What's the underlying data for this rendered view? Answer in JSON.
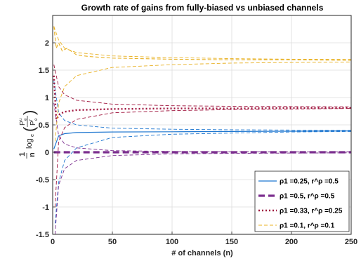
{
  "chart_data": {
    "type": "line",
    "title": "Growth rate of gains from fully-biased vs unbiased channels",
    "xlabel": "# of channels (n)",
    "ylabel": "(1/n) log_e(P_e^u / P_e^f)",
    "xlim": [
      0,
      250
    ],
    "ylim": [
      -1.5,
      2.5
    ],
    "xticks": [
      0,
      50,
      100,
      150,
      200,
      250
    ],
    "yticks": [
      -1.5,
      -1,
      -0.5,
      0,
      0.5,
      1,
      1.5,
      2
    ],
    "xtick_labels": [
      "0",
      "50",
      "100",
      "150",
      "200",
      "250"
    ],
    "ytick_labels": [
      "-1.5",
      "-1",
      "-0.5",
      "0",
      "0.5",
      "1",
      "1.5",
      "2"
    ],
    "grid": true,
    "legend_position": "bottom-right",
    "series": [
      {
        "name": "ρ1 =0.25, r^ρ =0.5",
        "color": "#1f77d0",
        "style": "solid",
        "exact": [
          [
            1,
            0.06
          ],
          [
            5,
            0.3
          ],
          [
            10,
            0.34
          ],
          [
            20,
            0.36
          ],
          [
            50,
            0.37
          ],
          [
            100,
            0.375
          ],
          [
            150,
            0.38
          ],
          [
            200,
            0.385
          ],
          [
            250,
            0.39
          ]
        ],
        "upper_bound": [
          [
            1,
            1.3
          ],
          [
            5,
            0.72
          ],
          [
            10,
            0.58
          ],
          [
            20,
            0.5
          ],
          [
            50,
            0.44
          ],
          [
            100,
            0.42
          ],
          [
            150,
            0.41
          ],
          [
            200,
            0.405
          ],
          [
            250,
            0.4
          ]
        ],
        "lower_bound": [
          [
            2,
            -1.3
          ],
          [
            5,
            -0.55
          ],
          [
            10,
            -0.15
          ],
          [
            20,
            0.08
          ],
          [
            50,
            0.27
          ],
          [
            100,
            0.33
          ],
          [
            150,
            0.35
          ],
          [
            200,
            0.37
          ],
          [
            250,
            0.38
          ]
        ]
      },
      {
        "name": "ρ1 =0.5, r^ρ =0.5",
        "color": "#7b2d8e",
        "style": "dashed-thick",
        "exact": [
          [
            1,
            0.0
          ],
          [
            50,
            0.0
          ],
          [
            100,
            0.0
          ],
          [
            150,
            0.0
          ],
          [
            200,
            0.0
          ],
          [
            250,
            0.0
          ]
        ],
        "upper_bound": [
          [
            1,
            0.9
          ],
          [
            5,
            0.3
          ],
          [
            10,
            0.15
          ],
          [
            20,
            0.08
          ],
          [
            50,
            0.03
          ],
          [
            100,
            0.015
          ],
          [
            150,
            0.01
          ],
          [
            200,
            0.008
          ],
          [
            250,
            0.006
          ]
        ],
        "lower_bound": [
          [
            2,
            -1.5
          ],
          [
            5,
            -0.6
          ],
          [
            10,
            -0.3
          ],
          [
            20,
            -0.15
          ],
          [
            50,
            -0.06
          ],
          [
            100,
            -0.03
          ],
          [
            150,
            -0.02
          ],
          [
            200,
            -0.015
          ],
          [
            250,
            -0.01
          ]
        ]
      },
      {
        "name": "ρ1 =0.33, r^ρ =0.25",
        "color": "#a0153e",
        "style": "dotted",
        "exact": [
          [
            1,
            1.4
          ],
          [
            3,
            0.6
          ],
          [
            6,
            0.7
          ],
          [
            10,
            0.74
          ],
          [
            20,
            0.77
          ],
          [
            50,
            0.79
          ],
          [
            100,
            0.8
          ],
          [
            150,
            0.8
          ],
          [
            200,
            0.81
          ],
          [
            250,
            0.81
          ]
        ],
        "upper_bound": [
          [
            1,
            1.6
          ],
          [
            5,
            1.2
          ],
          [
            10,
            1.05
          ],
          [
            20,
            0.95
          ],
          [
            50,
            0.88
          ],
          [
            100,
            0.85
          ],
          [
            150,
            0.84
          ],
          [
            200,
            0.835
          ],
          [
            250,
            0.83
          ]
        ],
        "lower_bound": [
          [
            2,
            -1.0
          ],
          [
            5,
            0.2
          ],
          [
            10,
            0.45
          ],
          [
            20,
            0.6
          ],
          [
            50,
            0.72
          ],
          [
            100,
            0.76
          ],
          [
            150,
            0.78
          ],
          [
            200,
            0.79
          ],
          [
            250,
            0.8
          ]
        ]
      },
      {
        "name": "ρ1 =0.1, r^ρ =0.1",
        "color": "#e8b021",
        "style": "dashed",
        "exact": [
          [
            1,
            2.3
          ],
          [
            3,
            1.9
          ],
          [
            5,
            2.0
          ],
          [
            8,
            1.85
          ],
          [
            12,
            1.9
          ],
          [
            20,
            1.78
          ],
          [
            30,
            1.75
          ],
          [
            50,
            1.72
          ],
          [
            100,
            1.7
          ],
          [
            150,
            1.69
          ],
          [
            200,
            1.69
          ],
          [
            250,
            1.68
          ]
        ],
        "upper_bound": [
          [
            1,
            2.3
          ],
          [
            5,
            2.05
          ],
          [
            10,
            1.9
          ],
          [
            20,
            1.82
          ],
          [
            50,
            1.76
          ],
          [
            100,
            1.73
          ],
          [
            150,
            1.71
          ],
          [
            200,
            1.7
          ],
          [
            250,
            1.7
          ]
        ],
        "lower_bound": [
          [
            2,
            0.2
          ],
          [
            5,
            0.9
          ],
          [
            10,
            1.2
          ],
          [
            20,
            1.4
          ],
          [
            50,
            1.55
          ],
          [
            100,
            1.6
          ],
          [
            150,
            1.63
          ],
          [
            200,
            1.64
          ],
          [
            250,
            1.65
          ]
        ]
      }
    ]
  }
}
